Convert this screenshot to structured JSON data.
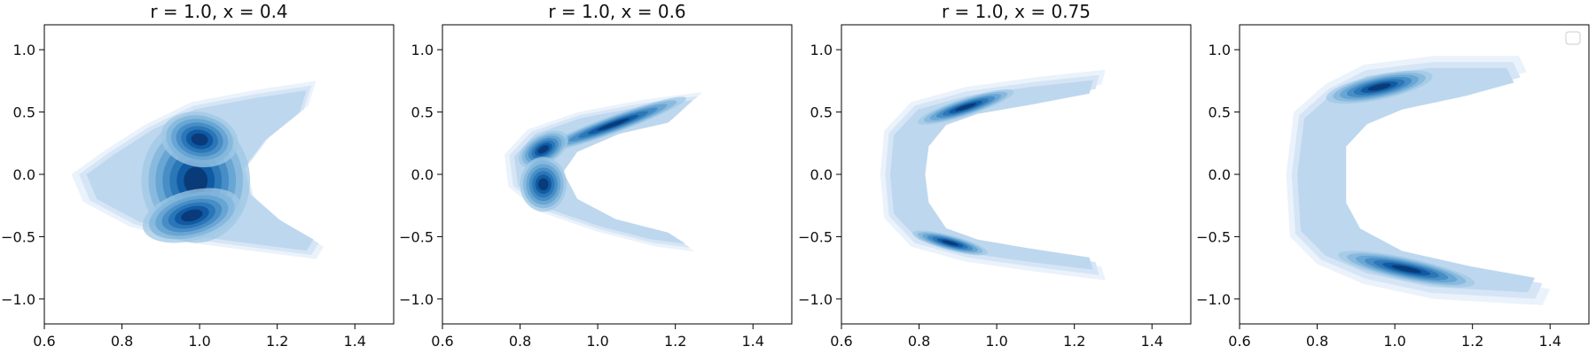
{
  "chart_data": [
    {
      "type": "contour",
      "title": "r = 1.0, x = 0.4",
      "xlabel": "",
      "ylabel": "",
      "xlim": [
        0.6,
        1.5
      ],
      "ylim": [
        -1.2,
        1.2
      ],
      "xticks": [
        "0.6",
        "0.8",
        "1.0",
        "1.2",
        "1.4"
      ],
      "yticks": [
        "−1.0",
        "−0.5",
        "0.0",
        "0.5",
        "1.0"
      ],
      "colormap": "Blues",
      "density_peaks": [
        {
          "x": 1.0,
          "y": -0.3
        },
        {
          "x": 1.02,
          "y": 0.3
        }
      ],
      "legend": false
    },
    {
      "type": "contour",
      "title": "r = 1.0, x = 0.6",
      "xlabel": "",
      "ylabel": "",
      "xlim": [
        0.6,
        1.5
      ],
      "ylim": [
        -1.2,
        1.2
      ],
      "xticks": [
        "0.6",
        "0.8",
        "1.0",
        "1.2",
        "1.4"
      ],
      "yticks": [
        "−1.0",
        "−0.5",
        "0.0",
        "0.5",
        "1.0"
      ],
      "colormap": "Blues",
      "density_peaks": [
        {
          "x": 0.85,
          "y": 0.2
        },
        {
          "x": 1.12,
          "y": 0.55
        }
      ],
      "legend": false
    },
    {
      "type": "contour",
      "title": "r = 1.0, x = 0.75",
      "xlabel": "",
      "ylabel": "",
      "xlim": [
        0.6,
        1.5
      ],
      "ylim": [
        -1.2,
        1.2
      ],
      "xticks": [
        "0.6",
        "0.8",
        "1.0",
        "1.2",
        "1.4"
      ],
      "yticks": [
        "−1.0",
        "−0.5",
        "0.0",
        "0.5",
        "1.0"
      ],
      "colormap": "Blues",
      "density_peaks": [
        {
          "x": 0.85,
          "y": 0.52
        },
        {
          "x": 0.85,
          "y": -0.55
        }
      ],
      "legend": false
    },
    {
      "type": "contour",
      "title": "",
      "xlabel": "",
      "ylabel": "",
      "xlim": [
        0.6,
        1.5
      ],
      "ylim": [
        -1.2,
        1.2
      ],
      "xticks": [
        "0.6",
        "0.8",
        "1.0",
        "1.2",
        "1.4"
      ],
      "yticks": [
        "−1.0",
        "−0.5",
        "0.0",
        "0.5",
        "1.0"
      ],
      "colormap": "Blues",
      "density_peaks": [
        {
          "x": 0.95,
          "y": 0.72
        },
        {
          "x": 1.02,
          "y": -0.77
        }
      ],
      "legend": true,
      "legend_position": "top-right",
      "legend_entries": []
    }
  ],
  "colors": {
    "levels": [
      "#eaf2fb",
      "#d6e5f5",
      "#bdd7ee",
      "#a0c8e5",
      "#7fb4db",
      "#5d9fd0",
      "#3d86c2",
      "#216fb1",
      "#08519c",
      "#08306b"
    ]
  }
}
